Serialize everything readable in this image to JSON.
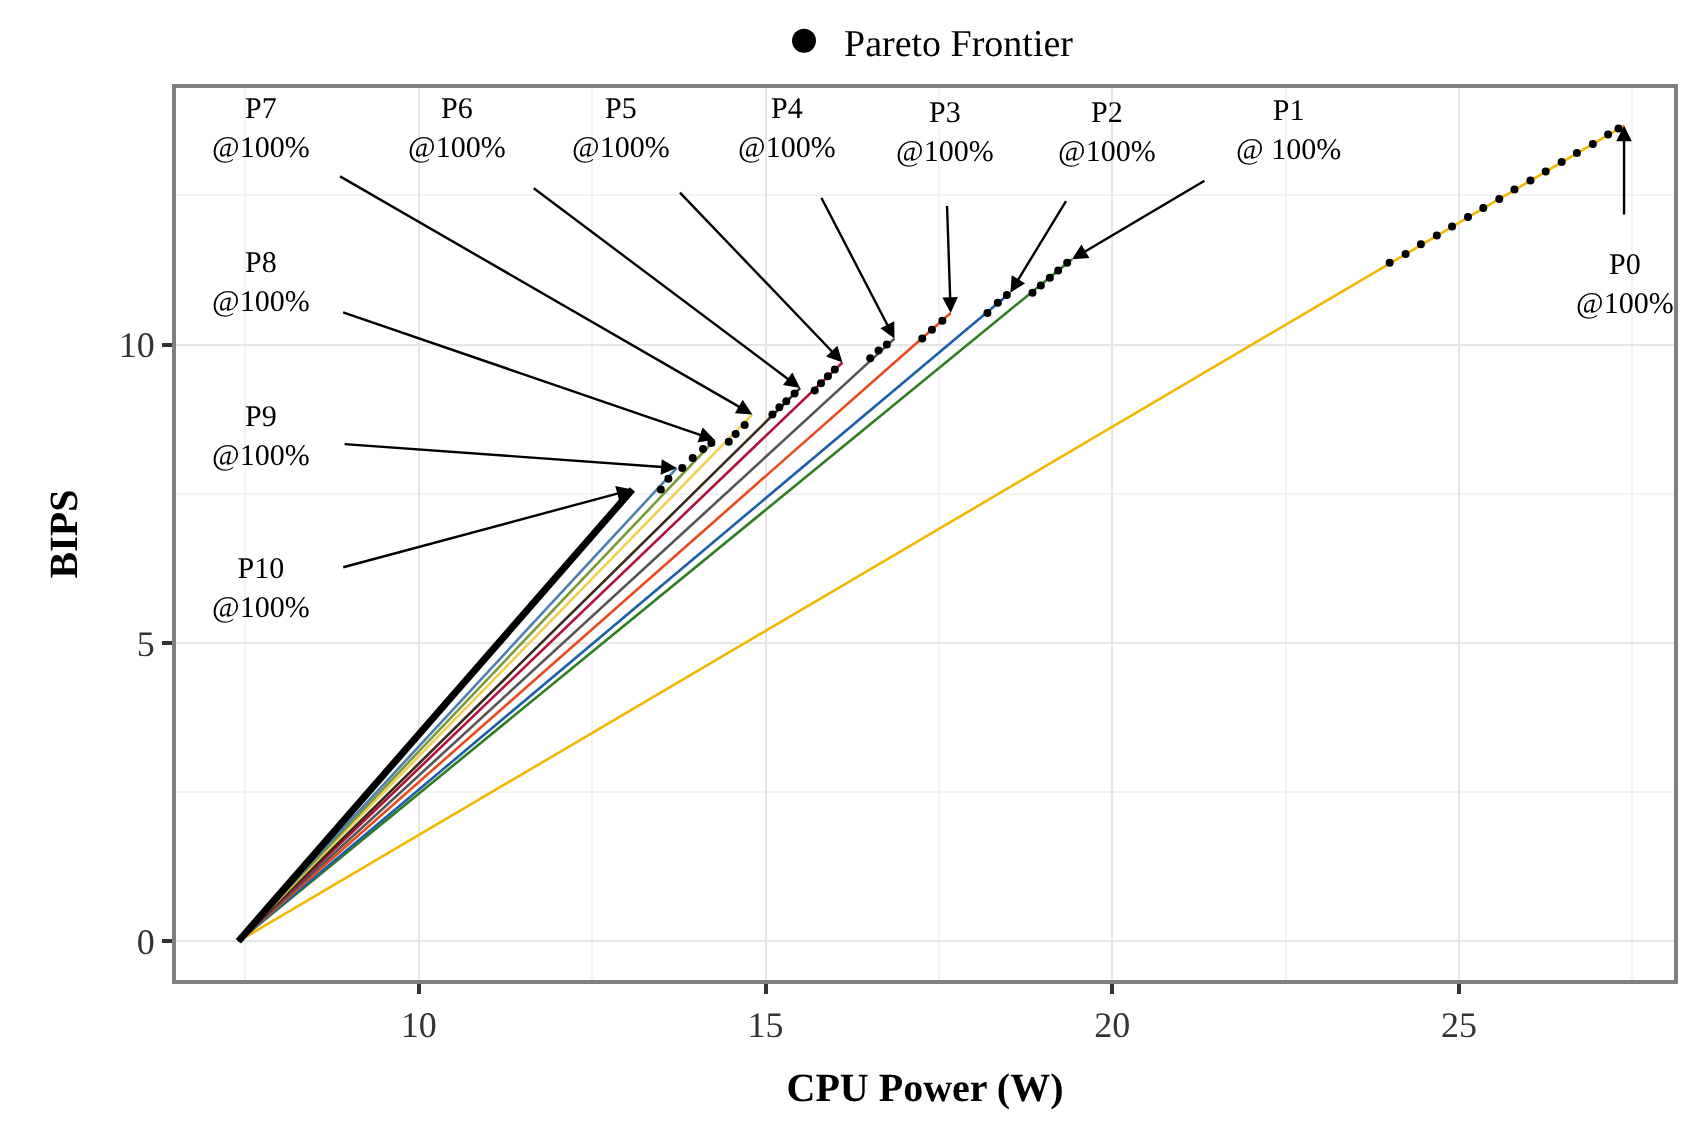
{
  "chart_data": {
    "type": "line",
    "xlabel": "CPU Power (W)",
    "ylabel": "BIPS",
    "xlim": [
      6.5,
      28.1
    ],
    "ylim": [
      -0.65,
      14.3
    ],
    "xticks": [
      10,
      15,
      20,
      25
    ],
    "yticks": [
      0,
      5,
      10
    ],
    "grid": true,
    "legend": "top",
    "marker": "none",
    "series": [
      {
        "color": "#f2b800",
        "x": [
          7.4,
          27.38
        ],
        "values": [
          0,
          13.67
        ]
      },
      {
        "color": "#2e7d1e",
        "x": [
          7.4,
          19.42
        ],
        "values": [
          0,
          11.43
        ]
      },
      {
        "color": "#1d5fa8",
        "x": [
          7.4,
          18.53
        ],
        "values": [
          0,
          10.87
        ]
      },
      {
        "color": "#e8491d",
        "x": [
          7.4,
          17.67
        ],
        "values": [
          0,
          10.53
        ]
      },
      {
        "color": "#555555",
        "x": [
          7.4,
          16.86
        ],
        "values": [
          0,
          10.1
        ]
      },
      {
        "color": "#b0103a",
        "x": [
          7.4,
          16.11
        ],
        "values": [
          0,
          9.7
        ]
      },
      {
        "color": "#3a2a1a",
        "x": [
          7.4,
          15.5
        ],
        "values": [
          0,
          9.27
        ]
      },
      {
        "color": "#f0d050",
        "x": [
          7.4,
          14.81
        ],
        "values": [
          0,
          8.83
        ]
      },
      {
        "color": "#7a9a3a",
        "x": [
          7.4,
          14.27
        ],
        "values": [
          0,
          8.4
        ]
      },
      {
        "color": "#4a7fb0",
        "x": [
          7.4,
          13.72
        ],
        "values": [
          0,
          7.93
        ]
      },
      {
        "color": "#000000",
        "x": [
          7.4,
          13.08
        ],
        "values": [
          0,
          7.57
        ]
      },
      {
        "type": "scatter",
        "marker": "circle",
        "name": "Pareto Frontier",
        "color": "#000000",
        "x": [
          24.0,
          24.23,
          24.45,
          24.68,
          24.9,
          25.13,
          25.35,
          25.58,
          25.8,
          26.03,
          26.25,
          26.48,
          26.7,
          26.93,
          27.15,
          27.3,
          18.85,
          18.97,
          19.1,
          19.22,
          19.35,
          18.2,
          18.35,
          18.48,
          17.26,
          17.4,
          17.55,
          16.51,
          16.63,
          16.75,
          15.71,
          15.8,
          15.9,
          16.0,
          15.1,
          15.2,
          15.3,
          15.42,
          14.47,
          14.57,
          14.7,
          13.8,
          13.95,
          14.1,
          14.22,
          13.49,
          13.6
        ],
        "values": [
          11.37,
          11.52,
          11.68,
          11.83,
          11.98,
          12.14,
          12.29,
          12.44,
          12.6,
          12.75,
          12.9,
          13.06,
          13.21,
          13.36,
          13.52,
          13.62,
          10.87,
          10.99,
          11.12,
          11.24,
          11.37,
          10.53,
          10.7,
          10.83,
          10.1,
          10.25,
          10.4,
          9.77,
          9.9,
          10.0,
          9.23,
          9.35,
          9.47,
          9.58,
          8.83,
          8.95,
          9.05,
          9.18,
          8.37,
          8.5,
          8.65,
          7.93,
          8.1,
          8.25,
          8.35,
          7.57,
          7.75
        ]
      }
    ],
    "annotations": [
      {
        "text": "P0\n@100%",
        "x": 27.38,
        "y": 13.67
      },
      {
        "text": "P1\n@ 100%",
        "x": 19.42,
        "y": 11.43
      },
      {
        "text": "P2\n@100%",
        "x": 18.53,
        "y": 10.87
      },
      {
        "text": "P3\n@100%",
        "x": 17.67,
        "y": 10.53
      },
      {
        "text": "P4\n@100%",
        "x": 16.86,
        "y": 10.1
      },
      {
        "text": "P5\n@100%",
        "x": 16.11,
        "y": 9.7
      },
      {
        "text": "P6\n@100%",
        "x": 15.5,
        "y": 9.27
      },
      {
        "text": "P7\n@100%",
        "x": 14.81,
        "y": 8.83
      },
      {
        "text": "P8\n@100%",
        "x": 14.27,
        "y": 8.4
      },
      {
        "text": "P9\n@100%",
        "x": 13.72,
        "y": 7.93
      },
      {
        "text": "P10\n@100%",
        "x": 13.08,
        "y": 7.57
      }
    ]
  }
}
